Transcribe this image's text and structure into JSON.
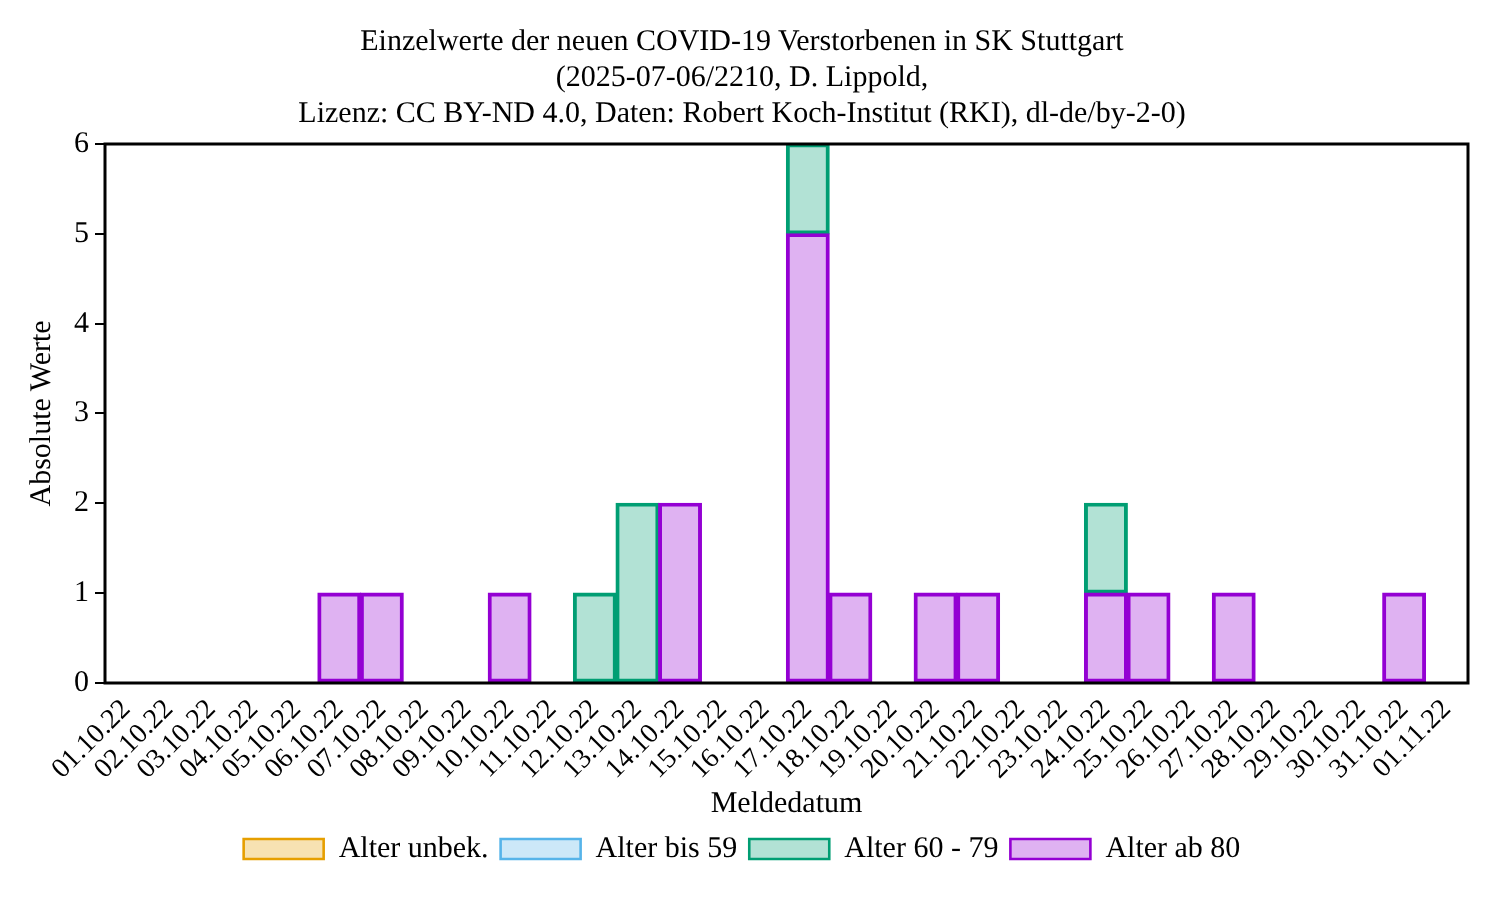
{
  "chart_data": {
    "type": "bar",
    "title": [
      "Einzelwerte der neuen COVID-19 Verstorbenen in SK Stuttgart",
      "(2025-07-06/2210, D. Lippold,",
      "Lizenz: CC BY-ND 4.0, Daten: Robert Koch-Institut (RKI), dl-de/by-2-0)"
    ],
    "xlabel": "Meldedatum",
    "ylabel": "Absolute Werte",
    "categories": [
      "01.10.22",
      "02.10.22",
      "03.10.22",
      "04.10.22",
      "05.10.22",
      "06.10.22",
      "07.10.22",
      "08.10.22",
      "09.10.22",
      "10.10.22",
      "11.10.22",
      "12.10.22",
      "13.10.22",
      "14.10.22",
      "15.10.22",
      "16.10.22",
      "17.10.22",
      "18.10.22",
      "19.10.22",
      "20.10.22",
      "21.10.22",
      "22.10.22",
      "23.10.22",
      "24.10.22",
      "25.10.22",
      "26.10.22",
      "27.10.22",
      "28.10.22",
      "29.10.22",
      "30.10.22",
      "31.10.22",
      "01.11.22"
    ],
    "stacked": true,
    "series": [
      {
        "name": "Alter ab 80",
        "color": "#9400d3",
        "values": [
          0,
          0,
          0,
          0,
          0,
          1,
          1,
          0,
          0,
          1,
          0,
          0,
          0,
          2,
          0,
          0,
          5,
          1,
          0,
          1,
          1,
          0,
          0,
          1,
          1,
          0,
          1,
          0,
          0,
          0,
          1,
          0
        ]
      },
      {
        "name": "Alter 60 - 79",
        "color": "#009e73",
        "values": [
          0,
          0,
          0,
          0,
          0,
          0,
          0,
          0,
          0,
          0,
          0,
          1,
          2,
          0,
          0,
          0,
          1,
          0,
          0,
          0,
          0,
          0,
          0,
          1,
          0,
          0,
          0,
          0,
          0,
          0,
          0,
          0
        ]
      },
      {
        "name": "Alter bis 59",
        "color": "#56b4e9",
        "values": [
          0,
          0,
          0,
          0,
          0,
          0,
          0,
          0,
          0,
          0,
          0,
          0,
          0,
          0,
          0,
          0,
          0,
          0,
          0,
          0,
          0,
          0,
          0,
          0,
          0,
          0,
          0,
          0,
          0,
          0,
          0,
          0
        ]
      },
      {
        "name": "Alter unbek.",
        "color": "#e69f00",
        "values": [
          0,
          0,
          0,
          0,
          0,
          0,
          0,
          0,
          0,
          0,
          0,
          0,
          0,
          0,
          0,
          0,
          0,
          0,
          0,
          0,
          0,
          0,
          0,
          0,
          0,
          0,
          0,
          0,
          0,
          0,
          0,
          0
        ]
      }
    ],
    "ylim": [
      0,
      6
    ],
    "yticks": [
      0,
      1,
      2,
      3,
      4,
      5,
      6
    ],
    "grid": false,
    "legend": "bottom"
  }
}
